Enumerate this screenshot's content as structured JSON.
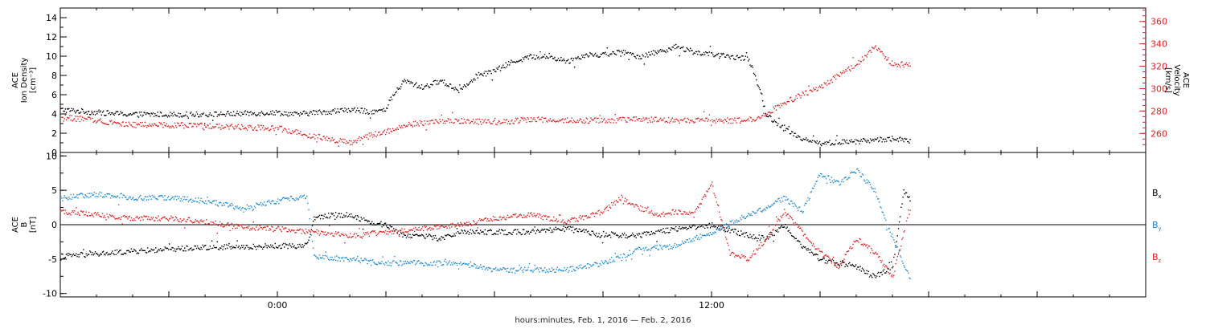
{
  "figure": {
    "footer": "hours:minutes, Feb.  1, 2016 — Feb.  2, 2016"
  },
  "colors": {
    "black": "#000000",
    "red": "#e02020",
    "blue": "#1a88d8"
  },
  "chart_data": [
    {
      "type": "scatter",
      "panel": "top",
      "x_axis": {
        "unit": "hours relative to 2016-02-01 00:00 UT",
        "range": [
          -6,
          24
        ],
        "labeled_ticks": [
          {
            "value": 0,
            "label": "0:00"
          },
          {
            "value": 12,
            "label": "12:00"
          }
        ]
      },
      "y_left": {
        "label_lines": [
          "ACE",
          "Ion Density",
          "[cm⁻³]"
        ],
        "range": [
          0,
          15
        ],
        "ticks": [
          0,
          2,
          4,
          6,
          8,
          10,
          12,
          14
        ]
      },
      "y_right": {
        "label_lines": [
          "ACE",
          "Velocity",
          "[km/s]"
        ],
        "range": [
          243,
          372
        ],
        "ticks": [
          260,
          280,
          300,
          320,
          340,
          360
        ],
        "color": "red"
      },
      "series": [
        {
          "axis": "left",
          "color": "black",
          "x": [
            -6,
            -5,
            -4,
            -3,
            -2,
            -1,
            0,
            0.5,
            1,
            1.5,
            2,
            2.5,
            3,
            3.1,
            3.5,
            4,
            4.5,
            5,
            5.5,
            6,
            6.5,
            7,
            7.5,
            8,
            8.5,
            9,
            9.5,
            10,
            10.5,
            11,
            11.5,
            12,
            12.5,
            13,
            13.2,
            13.5,
            14,
            14.5,
            15,
            16,
            17,
            17.5
          ],
          "y": [
            4.5,
            4.2,
            4.0,
            4.0,
            4.0,
            4.1,
            4.2,
            4.0,
            4.2,
            4.3,
            4.5,
            4.3,
            4.4,
            5.5,
            7.5,
            6.8,
            7.5,
            6.5,
            8.0,
            8.5,
            9.5,
            10.0,
            10.0,
            9.5,
            10.2,
            10.2,
            10.5,
            10.0,
            10.5,
            11.0,
            10.5,
            10.2,
            10.0,
            9.8,
            8.0,
            4.0,
            2.5,
            1.5,
            1.0,
            1.2,
            1.5,
            1.2
          ]
        },
        {
          "axis": "right",
          "color": "red",
          "x": [
            -6,
            -5,
            -4,
            -3,
            -2,
            -1,
            0,
            1,
            1.5,
            2,
            2.5,
            3,
            3.5,
            4,
            5,
            6,
            7,
            8,
            9,
            10,
            11,
            12,
            13,
            13.5,
            14,
            14.5,
            15,
            15.5,
            16,
            16.5,
            17,
            17.5
          ],
          "y": [
            275,
            272,
            268,
            268,
            267,
            266,
            265,
            258,
            255,
            252,
            258,
            262,
            268,
            270,
            272,
            270,
            273,
            272,
            272,
            273,
            272,
            272,
            272,
            278,
            288,
            295,
            302,
            312,
            322,
            338,
            322,
            322
          ]
        }
      ]
    },
    {
      "type": "scatter",
      "panel": "bottom",
      "x_axis": {
        "unit": "hours relative to 2016-02-01 00:00 UT",
        "range": [
          -6,
          24
        ],
        "labeled_ticks": [
          {
            "value": 0,
            "label": "0:00"
          },
          {
            "value": 12,
            "label": "12:00"
          }
        ]
      },
      "y_left": {
        "label_lines": [
          "ACE",
          "B",
          "[nT]"
        ],
        "range": [
          -10.5,
          10.5
        ],
        "ticks": [
          -10,
          -5,
          0,
          5,
          10
        ]
      },
      "zero_line": true,
      "legend": {
        "placement": "right",
        "entries": [
          {
            "base": "B",
            "sub": "x",
            "color": "black"
          },
          {
            "base": "B",
            "sub": "y",
            "color": "blue"
          },
          {
            "base": "B",
            "sub": "z",
            "color": "red"
          }
        ]
      },
      "series": [
        {
          "name": "Bx",
          "color": "black",
          "x": [
            -6,
            -5,
            -4,
            -3,
            -2,
            -1,
            0,
            0.8,
            1,
            1.5,
            2,
            2.5,
            3,
            3.5,
            4,
            4.5,
            5,
            6,
            7,
            8,
            9,
            10,
            11,
            12,
            13,
            13.5,
            14,
            14.5,
            15,
            16,
            16.5,
            17,
            17.3,
            17.5
          ],
          "y": [
            -4.5,
            -4.2,
            -3.8,
            -3.5,
            -3.2,
            -3.2,
            -3.0,
            -3.0,
            1.0,
            1.5,
            1.5,
            0.5,
            0.0,
            -1.5,
            -1.5,
            -2.0,
            -1.0,
            -1.0,
            -1.0,
            -0.5,
            -1.5,
            -1.5,
            -0.5,
            0.0,
            -1.5,
            -2.0,
            0.0,
            -3.0,
            -5.0,
            -6.0,
            -7.5,
            -6.0,
            5.0,
            3.5
          ]
        },
        {
          "name": "By",
          "color": "blue",
          "x": [
            -6,
            -5,
            -4,
            -3,
            -2,
            -1,
            0,
            0.5,
            0.8,
            1,
            2,
            3,
            4,
            5,
            6,
            7,
            8,
            9,
            10,
            11,
            12,
            13,
            13.5,
            14,
            14.5,
            15,
            15.5,
            16,
            16.5,
            17,
            17.5
          ],
          "y": [
            4.0,
            4.5,
            4.0,
            4.0,
            3.5,
            2.5,
            3.5,
            4.0,
            4.3,
            -4.5,
            -5.0,
            -5.5,
            -5.5,
            -5.5,
            -6.5,
            -6.5,
            -6.5,
            -5.5,
            -3.5,
            -3.0,
            -1.0,
            1.5,
            2.5,
            4.0,
            2.0,
            7.5,
            6.0,
            8.0,
            5.0,
            -2.0,
            -8.0
          ]
        },
        {
          "name": "Bz",
          "color": "red",
          "x": [
            -6,
            -5,
            -4,
            -3,
            -2,
            -1,
            0,
            1,
            2,
            3,
            4,
            5,
            6,
            7,
            8,
            9,
            9.5,
            10,
            10.5,
            11,
            11.5,
            12,
            12.5,
            13,
            13.5,
            14,
            14.5,
            15,
            15.5,
            16,
            16.5,
            17,
            17.5
          ],
          "y": [
            2.0,
            1.5,
            1.0,
            1.0,
            0.5,
            -0.3,
            -0.5,
            -1.0,
            -1.5,
            -1.0,
            -0.5,
            0.0,
            1.0,
            1.5,
            0.5,
            2.0,
            4.0,
            2.5,
            1.5,
            2.0,
            1.5,
            6.0,
            -4.0,
            -5.0,
            -2.0,
            2.0,
            -1.0,
            -4.0,
            -6.0,
            -2.0,
            -4.0,
            -7.5,
            3.0
          ]
        }
      ]
    }
  ]
}
